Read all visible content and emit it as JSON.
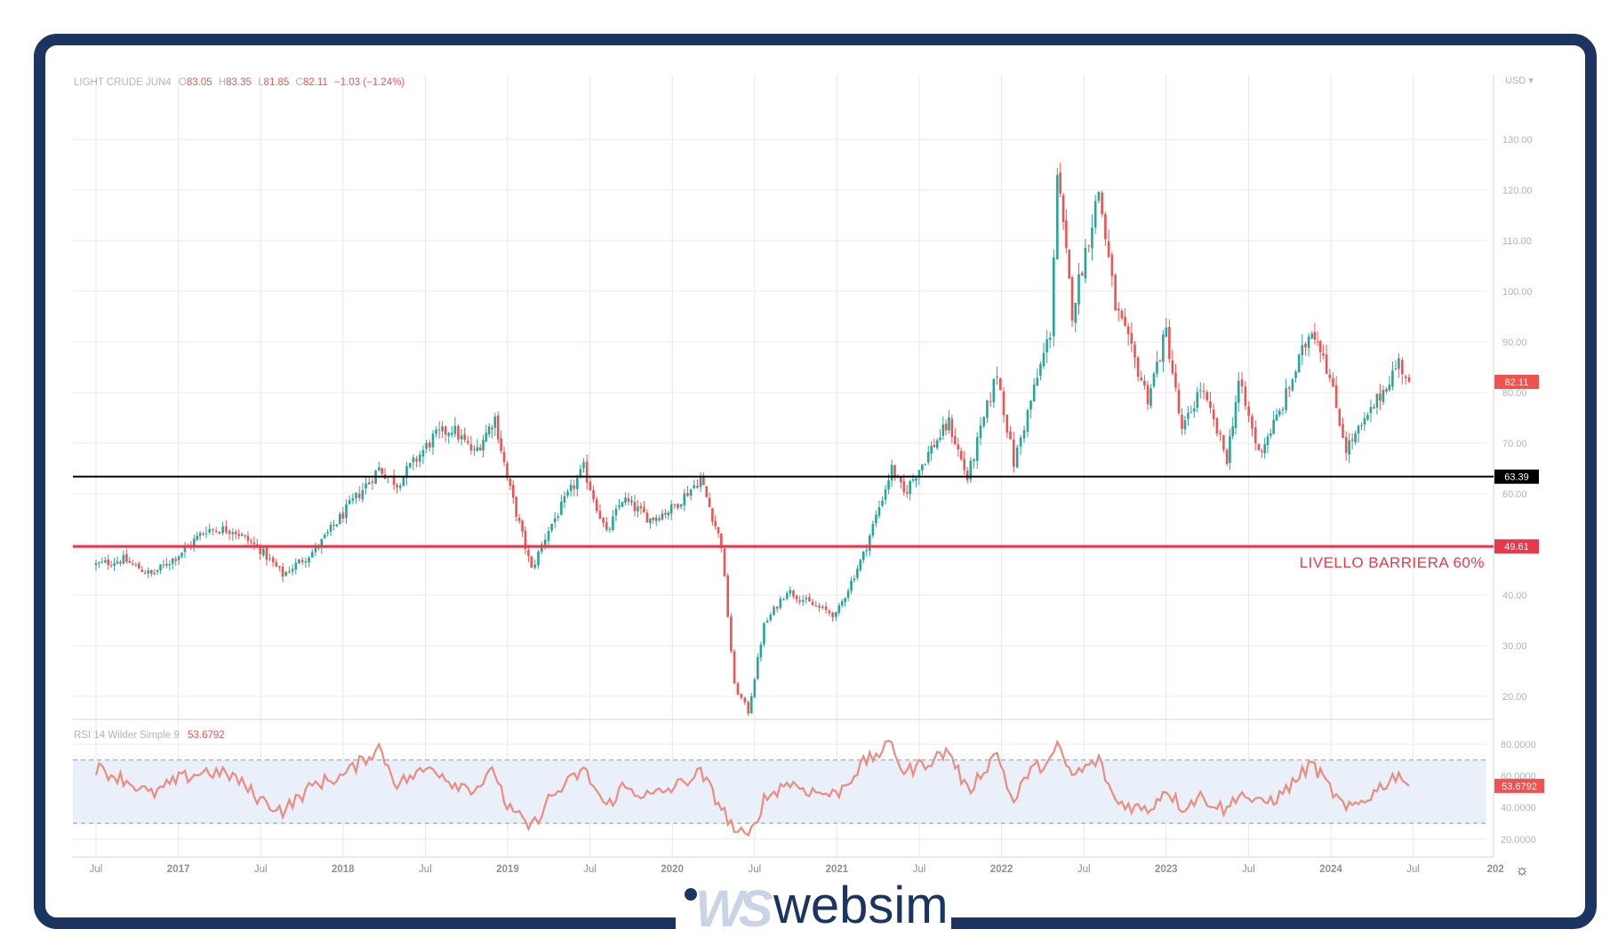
{
  "instrument": {
    "name": "LIGHT CRUDE JUN4",
    "o_label": "O",
    "o": "83.05",
    "h_label": "H",
    "h": "83.35",
    "l_label": "L",
    "l": "81.85",
    "c_label": "C",
    "c": "82.11",
    "change": "−1.03 (−1.24%)"
  },
  "currency_label": "USD",
  "rsi_legend": {
    "label": "RSI 14 Wilder Simple 9",
    "value": "53.6792"
  },
  "brand": {
    "mark": "WS",
    "name": "websim"
  },
  "colors": {
    "up": "#26a69a",
    "down": "#ef5350",
    "barrier": "#e8394b",
    "frame": "#1b3560",
    "rsi_line": "#ef8a80",
    "rsi_band": "#e9f0f9"
  },
  "chart_data": [
    {
      "type": "candlestick",
      "title": "LIGHT CRUDE JUN4",
      "ylim": [
        15,
        146
      ],
      "y_ticks": [
        "130.00",
        "120.00",
        "110.00",
        "100.00",
        "90.00",
        "80.00",
        "70.00",
        "60.00",
        "50.00",
        "40.00",
        "30.00",
        "20.00"
      ],
      "x_ticks": [
        "Jul",
        "2017",
        "Jul",
        "2018",
        "Jul",
        "2019",
        "Jul",
        "2020",
        "Jul",
        "2021",
        "Jul",
        "2022",
        "Jul",
        "2023",
        "Jul",
        "2024",
        "Jul",
        "202"
      ],
      "last_price_label": "82.11",
      "price_anchors": [
        {
          "date": "2016-05-01",
          "close": 46
        },
        {
          "date": "2016-07-01",
          "close": 47
        },
        {
          "date": "2016-09-01",
          "close": 44
        },
        {
          "date": "2016-11-01",
          "close": 48
        },
        {
          "date": "2017-01-01",
          "close": 53
        },
        {
          "date": "2017-03-01",
          "close": 53
        },
        {
          "date": "2017-05-01",
          "close": 49
        },
        {
          "date": "2017-06-20",
          "close": 44
        },
        {
          "date": "2017-09-01",
          "close": 49
        },
        {
          "date": "2017-11-01",
          "close": 56
        },
        {
          "date": "2018-01-20",
          "close": 65
        },
        {
          "date": "2018-03-01",
          "close": 62
        },
        {
          "date": "2018-05-20",
          "close": 71
        },
        {
          "date": "2018-07-01",
          "close": 73
        },
        {
          "date": "2018-08-20",
          "close": 68
        },
        {
          "date": "2018-10-05",
          "close": 75
        },
        {
          "date": "2018-11-01",
          "close": 63
        },
        {
          "date": "2018-12-25",
          "close": 45
        },
        {
          "date": "2019-02-01",
          "close": 53
        },
        {
          "date": "2019-04-20",
          "close": 65
        },
        {
          "date": "2019-06-10",
          "close": 52
        },
        {
          "date": "2019-07-15",
          "close": 59
        },
        {
          "date": "2019-09-15",
          "close": 55
        },
        {
          "date": "2019-11-01",
          "close": 57
        },
        {
          "date": "2020-01-05",
          "close": 63
        },
        {
          "date": "2020-02-20",
          "close": 50
        },
        {
          "date": "2020-03-20",
          "close": 22
        },
        {
          "date": "2020-04-20",
          "close": 17
        },
        {
          "date": "2020-05-25",
          "close": 34
        },
        {
          "date": "2020-07-15",
          "close": 41
        },
        {
          "date": "2020-09-10",
          "close": 38
        },
        {
          "date": "2020-11-01",
          "close": 36
        },
        {
          "date": "2021-01-01",
          "close": 48
        },
        {
          "date": "2021-03-05",
          "close": 65
        },
        {
          "date": "2021-04-01",
          "close": 60
        },
        {
          "date": "2021-06-01",
          "close": 69
        },
        {
          "date": "2021-07-10",
          "close": 74
        },
        {
          "date": "2021-08-20",
          "close": 63
        },
        {
          "date": "2021-10-25",
          "close": 84
        },
        {
          "date": "2021-12-01",
          "close": 66
        },
        {
          "date": "2022-01-01",
          "close": 76
        },
        {
          "date": "2022-02-20",
          "close": 92
        },
        {
          "date": "2022-03-08",
          "close": 123
        },
        {
          "date": "2022-04-10",
          "close": 96
        },
        {
          "date": "2022-06-08",
          "close": 120
        },
        {
          "date": "2022-07-15",
          "close": 97
        },
        {
          "date": "2022-09-25",
          "close": 79
        },
        {
          "date": "2022-11-05",
          "close": 92
        },
        {
          "date": "2022-12-10",
          "close": 72
        },
        {
          "date": "2023-01-20",
          "close": 81
        },
        {
          "date": "2023-03-20",
          "close": 67
        },
        {
          "date": "2023-04-15",
          "close": 82
        },
        {
          "date": "2023-05-30",
          "close": 68
        },
        {
          "date": "2023-07-15",
          "close": 76
        },
        {
          "date": "2023-09-25",
          "close": 93
        },
        {
          "date": "2023-10-20",
          "close": 88
        },
        {
          "date": "2023-12-10",
          "close": 69
        },
        {
          "date": "2024-01-20",
          "close": 74
        },
        {
          "date": "2024-04-05",
          "close": 86
        },
        {
          "date": "2024-04-28",
          "close": 82.11
        }
      ],
      "horizontal_lines": [
        {
          "value": 63.39,
          "label": "63.39",
          "color": "#000000"
        },
        {
          "value": 49.61,
          "label": "49.61",
          "color": "#e8394b",
          "annotation": "LIVELLO BARRIERA 60%"
        }
      ]
    },
    {
      "type": "line",
      "title": "RSI 14 Wilder Simple 9",
      "ylim": [
        15,
        88
      ],
      "y_ticks": [
        "80.0000",
        "60.0000",
        "40.0000",
        "20.0000"
      ],
      "band": [
        30,
        70
      ],
      "last_value_label": "53.6792",
      "rsi_anchors": [
        {
          "date": "2016-05-01",
          "v": 65
        },
        {
          "date": "2016-07-01",
          "v": 58
        },
        {
          "date": "2016-09-01",
          "v": 48
        },
        {
          "date": "2016-11-01",
          "v": 58
        },
        {
          "date": "2017-01-01",
          "v": 63
        },
        {
          "date": "2017-03-01",
          "v": 60
        },
        {
          "date": "2017-05-01",
          "v": 45
        },
        {
          "date": "2017-06-20",
          "v": 38
        },
        {
          "date": "2017-09-01",
          "v": 55
        },
        {
          "date": "2017-11-01",
          "v": 60
        },
        {
          "date": "2018-01-20",
          "v": 78
        },
        {
          "date": "2018-03-01",
          "v": 55
        },
        {
          "date": "2018-05-20",
          "v": 66
        },
        {
          "date": "2018-07-01",
          "v": 56
        },
        {
          "date": "2018-08-20",
          "v": 52
        },
        {
          "date": "2018-10-05",
          "v": 63
        },
        {
          "date": "2018-11-01",
          "v": 40
        },
        {
          "date": "2018-12-25",
          "v": 27
        },
        {
          "date": "2019-02-01",
          "v": 45
        },
        {
          "date": "2019-04-20",
          "v": 64
        },
        {
          "date": "2019-06-10",
          "v": 40
        },
        {
          "date": "2019-07-15",
          "v": 53
        },
        {
          "date": "2019-09-15",
          "v": 47
        },
        {
          "date": "2019-11-01",
          "v": 52
        },
        {
          "date": "2020-01-05",
          "v": 62
        },
        {
          "date": "2020-02-20",
          "v": 40
        },
        {
          "date": "2020-03-20",
          "v": 26
        },
        {
          "date": "2020-04-20",
          "v": 20
        },
        {
          "date": "2020-05-25",
          "v": 45
        },
        {
          "date": "2020-07-15",
          "v": 56
        },
        {
          "date": "2020-09-10",
          "v": 50
        },
        {
          "date": "2020-11-01",
          "v": 48
        },
        {
          "date": "2021-01-01",
          "v": 68
        },
        {
          "date": "2021-03-05",
          "v": 80
        },
        {
          "date": "2021-04-01",
          "v": 62
        },
        {
          "date": "2021-06-01",
          "v": 70
        },
        {
          "date": "2021-07-10",
          "v": 76
        },
        {
          "date": "2021-08-20",
          "v": 50
        },
        {
          "date": "2021-10-25",
          "v": 75
        },
        {
          "date": "2021-12-01",
          "v": 42
        },
        {
          "date": "2022-01-01",
          "v": 62
        },
        {
          "date": "2022-02-20",
          "v": 70
        },
        {
          "date": "2022-03-08",
          "v": 78
        },
        {
          "date": "2022-04-10",
          "v": 60
        },
        {
          "date": "2022-06-08",
          "v": 70
        },
        {
          "date": "2022-07-15",
          "v": 44
        },
        {
          "date": "2022-09-25",
          "v": 38
        },
        {
          "date": "2022-11-05",
          "v": 52
        },
        {
          "date": "2022-12-10",
          "v": 40
        },
        {
          "date": "2023-01-20",
          "v": 47
        },
        {
          "date": "2023-03-20",
          "v": 38
        },
        {
          "date": "2023-04-15",
          "v": 50
        },
        {
          "date": "2023-05-30",
          "v": 42
        },
        {
          "date": "2023-07-15",
          "v": 47
        },
        {
          "date": "2023-09-25",
          "v": 68
        },
        {
          "date": "2023-10-20",
          "v": 58
        },
        {
          "date": "2023-12-10",
          "v": 38
        },
        {
          "date": "2024-01-20",
          "v": 45
        },
        {
          "date": "2024-04-05",
          "v": 62
        },
        {
          "date": "2024-04-28",
          "v": 53.68
        }
      ]
    }
  ]
}
